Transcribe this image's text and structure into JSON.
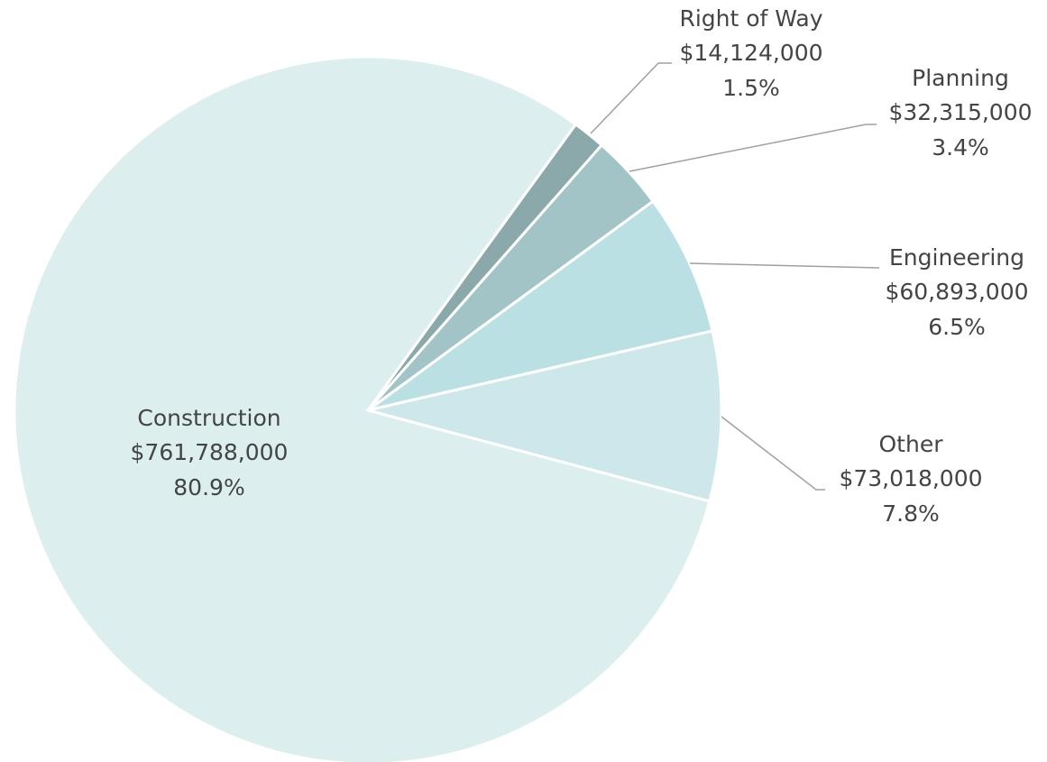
{
  "chart_data": {
    "type": "pie",
    "categories": [
      "Right of Way",
      "Planning",
      "Engineering",
      "Other",
      "Construction"
    ],
    "values": [
      14124000,
      32315000,
      60893000,
      73018000,
      761788000
    ],
    "value_labels": [
      "$14,124,000",
      "$32,315,000",
      "$60,893,000",
      "$73,018,000",
      "$761,788,000"
    ],
    "percent_labels": [
      "1.5%",
      "3.4%",
      "6.5%",
      "7.8%",
      "80.9%"
    ],
    "colors": [
      "#8ba9ab",
      "#a3c4c7",
      "#bbe0e3",
      "#cde7ea",
      "#dceeee"
    ]
  }
}
